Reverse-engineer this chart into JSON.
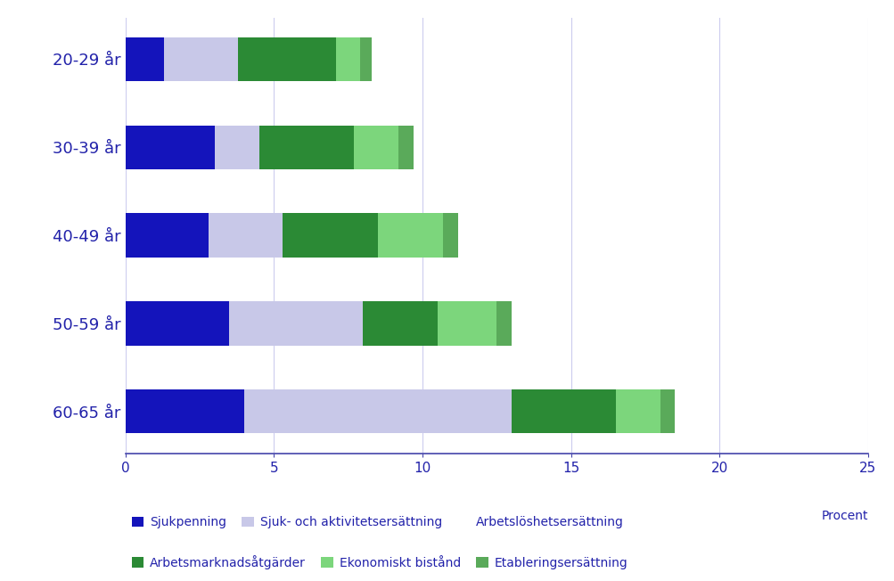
{
  "categories": [
    "20-29 år",
    "30-39 år",
    "40-49 år",
    "50-59 år",
    "60-65 år"
  ],
  "series_keys": [
    "Sjukpenning",
    "Sjuk- och aktivitetsersättning",
    "Arbetslöshetsersättning",
    "Arbetsmarknadsåtgärder",
    "Ekonomiskt bistånd",
    "Etableringsersättning"
  ],
  "series_data": {
    "Sjukpenning": [
      1.3,
      3.0,
      2.8,
      3.5,
      4.0
    ],
    "Sjuk- och aktivitetsersättning": [
      2.5,
      1.5,
      2.5,
      4.5,
      9.0
    ],
    "Arbetslöshetsersättning": [
      0.0,
      0.0,
      0.0,
      0.0,
      0.0
    ],
    "Arbetsmarknadsåtgärder": [
      3.3,
      3.2,
      3.2,
      2.5,
      3.5
    ],
    "Ekonomiskt bistånd": [
      0.8,
      1.5,
      2.2,
      2.0,
      1.5
    ],
    "Etableringsersättning": [
      0.4,
      0.5,
      0.5,
      0.5,
      0.5
    ]
  },
  "colors": {
    "Sjukpenning": "#1414BB",
    "Sjuk- och aktivitetsersättning": "#C8C8E8",
    "Arbetslöshetsersättning": "#FFFFFF",
    "Arbetsmarknadsåtgärder": "#2B8A35",
    "Ekonomiskt bistånd": "#7CD67C",
    "Etableringsersättning": "#5AAA5A"
  },
  "xlim": [
    0,
    25
  ],
  "xticks": [
    0,
    5,
    10,
    15,
    20,
    25
  ],
  "background_color": "#FFFFFF",
  "grid_color": "#CCCCEE",
  "axis_color": "#4444AA",
  "text_color": "#2222AA",
  "bar_height": 0.5,
  "procent_label": "Procent",
  "legend_row1": [
    "Sjukpenning",
    "Sjuk- och aktivitetsersättning",
    "Arbetslöshetsersättning"
  ],
  "legend_row2": [
    "Arbetsmarknadsåtgärder",
    "Ekonomiskt bistånd",
    "Etableringsersättning"
  ]
}
